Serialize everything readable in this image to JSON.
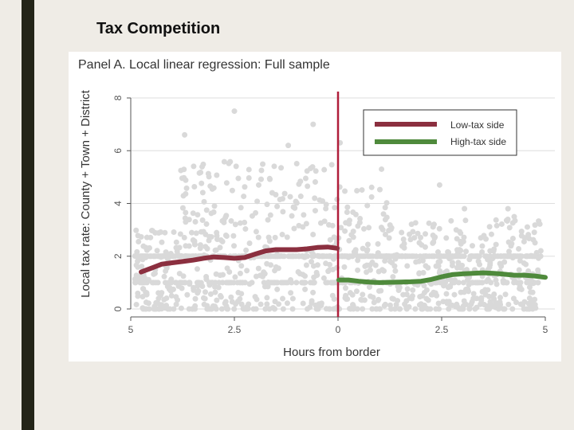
{
  "slide": {
    "title": "Tax Competition"
  },
  "colors": {
    "left_bar": "#232418",
    "low_tax": "#8b2f3f",
    "high_tax": "#4f8a3c",
    "border_line": "#b01e3a",
    "scatter": "#d9d9d9"
  },
  "chart_data": {
    "type": "scatter",
    "title": "Panel A. Local linear regression: Full sample",
    "xlabel": "Hours from border",
    "ylabel": "Local tax rate: County + Town + District",
    "xlim": [
      -5,
      5
    ],
    "ylim": [
      0,
      8
    ],
    "x_ticks": [
      -5,
      -2.5,
      0,
      2.5,
      5
    ],
    "x_tick_labels": [
      "5",
      "2.5",
      "0",
      "2.5",
      "5"
    ],
    "y_ticks": [
      0,
      2,
      4,
      6,
      8
    ],
    "y_tick_labels": [
      "0",
      "2",
      "4",
      "6",
      "8"
    ],
    "grid": true,
    "legend_position": "top-right",
    "vertical_line_x": 0,
    "series": [
      {
        "name": "Low-tax side",
        "color": "#8b2f3f",
        "x": [
          -4.75,
          -4.5,
          -4.25,
          -4.0,
          -3.75,
          -3.5,
          -3.25,
          -3.0,
          -2.75,
          -2.5,
          -2.25,
          -2.0,
          -1.75,
          -1.5,
          -1.25,
          -1.0,
          -0.75,
          -0.5,
          -0.25,
          -0.02
        ],
        "y": [
          1.4,
          1.55,
          1.7,
          1.75,
          1.8,
          1.85,
          1.92,
          1.97,
          1.95,
          1.92,
          1.95,
          2.08,
          2.2,
          2.25,
          2.25,
          2.25,
          2.28,
          2.33,
          2.35,
          2.3
        ]
      },
      {
        "name": "High-tax side",
        "color": "#4f8a3c",
        "x": [
          0.02,
          0.25,
          0.5,
          0.75,
          1.0,
          1.25,
          1.5,
          1.75,
          2.0,
          2.25,
          2.5,
          2.75,
          3.0,
          3.25,
          3.5,
          3.75,
          4.0,
          4.25,
          4.5,
          4.75,
          5.0
        ],
        "y": [
          1.1,
          1.1,
          1.05,
          1.02,
          1.0,
          1.01,
          1.02,
          1.03,
          1.05,
          1.12,
          1.22,
          1.3,
          1.33,
          1.35,
          1.37,
          1.35,
          1.32,
          1.28,
          1.28,
          1.25,
          1.2
        ]
      }
    ]
  }
}
